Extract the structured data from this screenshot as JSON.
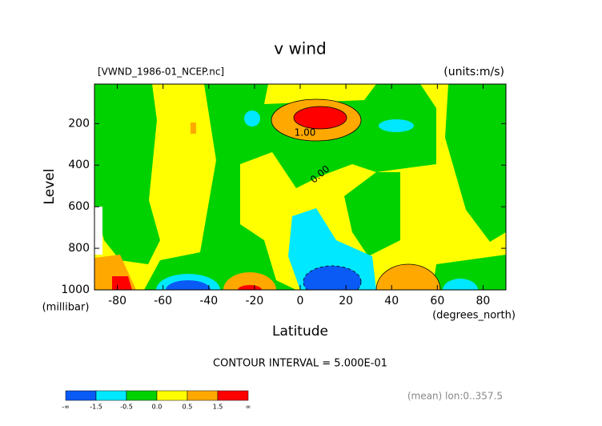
{
  "chart_data": {
    "type": "contour",
    "title": "v wind",
    "subtitle": "[VWND_1986-01_NCEP.nc]",
    "units_label": "(units:m/s)",
    "y_label": "Level",
    "y_unit_label": "(millibar)",
    "x_label": "Latitude",
    "x_unit_label": "(degrees_north)",
    "contour_interval": "CONTOUR INTERVAL = 5.000E-01",
    "footnote": "(mean) lon:0..357.5",
    "annotations": [
      "1.00",
      "0.00"
    ],
    "xlim": [
      -90,
      90
    ],
    "xticks": [
      -80,
      -60,
      -40,
      -20,
      0,
      20,
      40,
      60,
      80
    ],
    "ylim": [
      1000,
      10
    ],
    "yticks": [
      200,
      400,
      600,
      800,
      1000
    ],
    "colorbar": {
      "labels": [
        "-∞",
        "-1.5",
        "-0.5",
        "0.0",
        "0.5",
        "1.5",
        "∞"
      ],
      "colors": [
        "#0a5af5",
        "#00e8ff",
        "#00d200",
        "#ffff00",
        "#ffa800",
        "#ff0000"
      ]
    }
  }
}
